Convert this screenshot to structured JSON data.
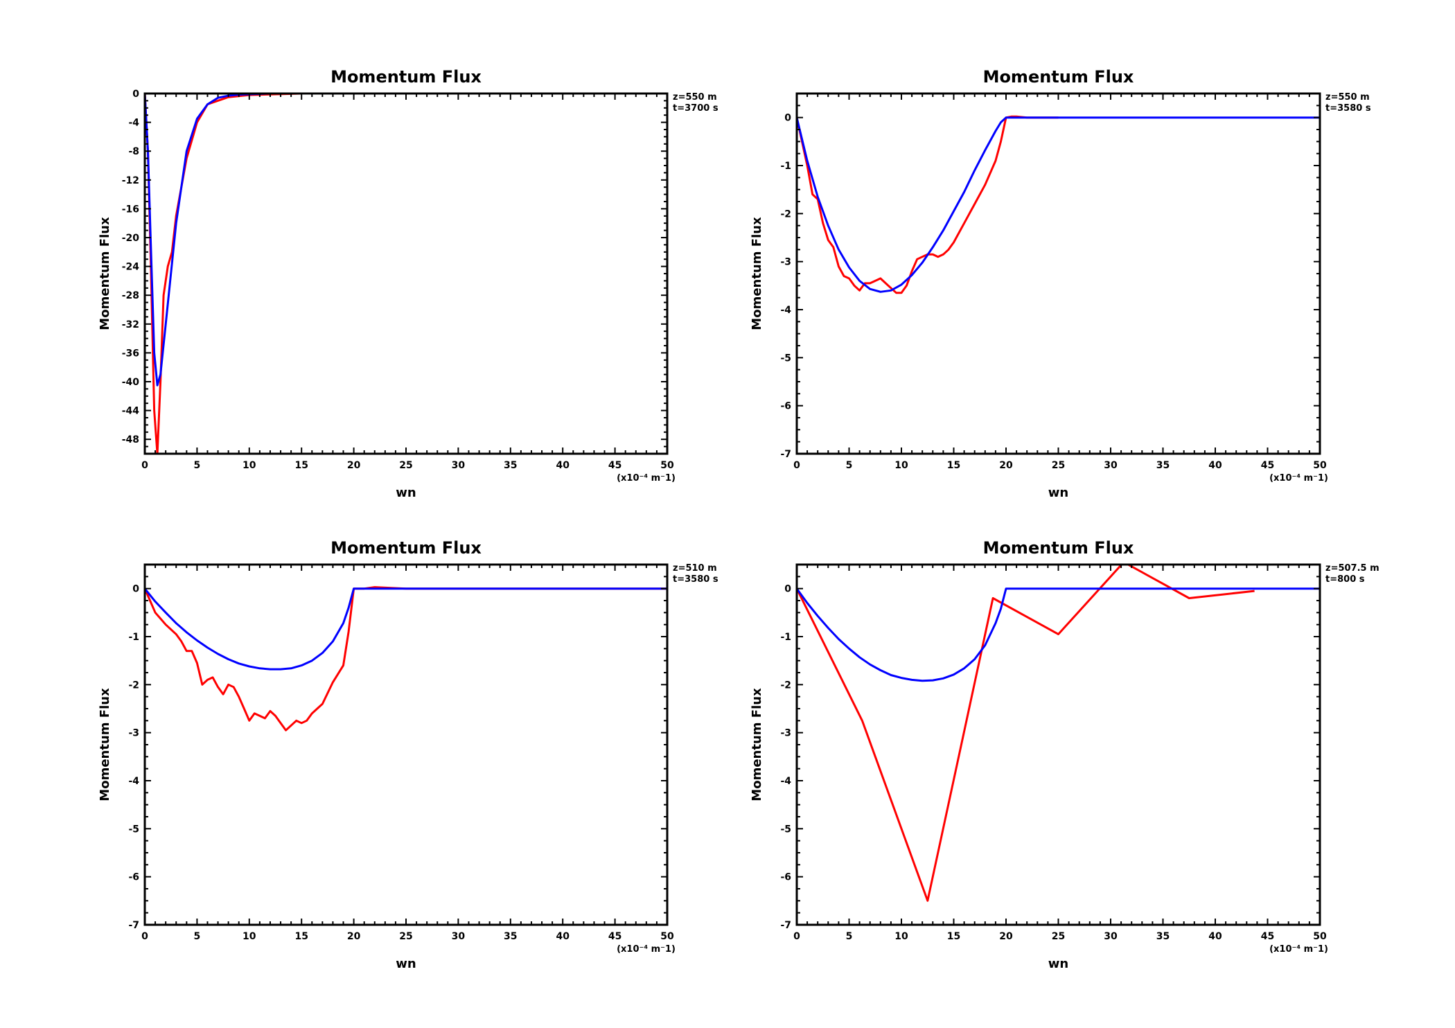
{
  "colors": {
    "observed": "#ff0000",
    "model": "#0000ff",
    "axes": "#000000"
  },
  "chart_data": [
    {
      "type": "line",
      "title": "Momentum Flux",
      "xlabel": "wn",
      "ylabel": "Momentum Flux",
      "x_unit_label": "(x10⁻⁴ m⁻1)",
      "annotations": [
        "z=550  m",
        "t=3700  s"
      ],
      "xlim": [
        0,
        50
      ],
      "ylim": [
        -50,
        0
      ],
      "x_ticks": [
        0,
        5,
        10,
        15,
        20,
        25,
        30,
        35,
        40,
        45,
        50
      ],
      "x_tick_labels": [
        "0",
        "5",
        "10",
        "15",
        "20",
        "25",
        "30",
        "35",
        "40",
        "45",
        "50"
      ],
      "y_ticks": [
        0,
        -4,
        -8,
        -12,
        -16,
        -20,
        -24,
        -28,
        -32,
        -36,
        -40,
        -44,
        -48
      ],
      "y_tick_labels": [
        "0",
        "-4",
        "-8",
        "-12",
        "-16",
        "-20",
        "-24",
        "-28",
        "-32",
        "-36",
        "-40",
        "-44",
        "-48"
      ],
      "grid": false,
      "series": [
        {
          "color": "#ff0000",
          "x": [
            0,
            0.3,
            0.6,
            0.9,
            1.2,
            1.5,
            1.8,
            2.2,
            2.6,
            3.0,
            4.0,
            5.0,
            6.0,
            8.0,
            10,
            15,
            20,
            30,
            40,
            50
          ],
          "y": [
            0,
            -8,
            -25,
            -44,
            -50,
            -40,
            -28,
            -24,
            -22,
            -17,
            -9,
            -4,
            -1.5,
            -0.5,
            -0.2,
            0,
            0,
            0,
            0,
            0
          ]
        },
        {
          "color": "#0000ff",
          "x": [
            0,
            0.3,
            0.6,
            0.9,
            1.2,
            1.5,
            2,
            3,
            4,
            5,
            6,
            7,
            8,
            9,
            10,
            12,
            15,
            20,
            30,
            40,
            50
          ],
          "y": [
            0,
            -8,
            -22,
            -36,
            -40.5,
            -39,
            -32,
            -18,
            -8,
            -3.5,
            -1.5,
            -0.6,
            -0.3,
            -0.15,
            -0.1,
            0,
            0,
            0,
            0,
            0,
            0
          ]
        }
      ]
    },
    {
      "type": "line",
      "title": "Momentum Flux",
      "xlabel": "wn",
      "ylabel": "Momentum Flux",
      "x_unit_label": "(x10⁻⁴ m⁻1)",
      "annotations": [
        "z=550  m",
        "t=3580  s"
      ],
      "xlim": [
        0,
        50
      ],
      "ylim": [
        -7,
        0.5
      ],
      "x_ticks": [
        0,
        5,
        10,
        15,
        20,
        25,
        30,
        35,
        40,
        45,
        50
      ],
      "x_tick_labels": [
        "0",
        "5",
        "10",
        "15",
        "20",
        "25",
        "30",
        "35",
        "40",
        "45",
        "50"
      ],
      "y_ticks": [
        0,
        -1,
        -2,
        -3,
        -4,
        -5,
        -6,
        -7
      ],
      "y_tick_labels": [
        "0",
        "-1",
        "-2",
        "-3",
        "-4",
        "-5",
        "-6",
        "-7"
      ],
      "grid": false,
      "series": [
        {
          "color": "#ff0000",
          "x": [
            0,
            0.5,
            1,
            1.5,
            2,
            2.5,
            3,
            3.5,
            4,
            4.5,
            5,
            5.5,
            6,
            6.5,
            7,
            7.5,
            8,
            8.5,
            9,
            9.5,
            10,
            10.5,
            11,
            11.5,
            12,
            12.5,
            13,
            13.5,
            14,
            14.5,
            15,
            16,
            17,
            18,
            19,
            19.5,
            20,
            20.5,
            21,
            22,
            25
          ],
          "y": [
            0,
            -0.5,
            -1.0,
            -1.6,
            -1.7,
            -2.2,
            -2.55,
            -2.7,
            -3.1,
            -3.3,
            -3.35,
            -3.5,
            -3.6,
            -3.45,
            -3.45,
            -3.4,
            -3.35,
            -3.45,
            -3.55,
            -3.65,
            -3.65,
            -3.5,
            -3.2,
            -2.95,
            -2.9,
            -2.85,
            -2.85,
            -2.9,
            -2.85,
            -2.75,
            -2.6,
            -2.2,
            -1.8,
            -1.4,
            -0.9,
            -0.5,
            0,
            0.02,
            0.02,
            0,
            0
          ]
        },
        {
          "color": "#0000ff",
          "x": [
            0,
            1,
            2,
            3,
            4,
            5,
            6,
            7,
            8,
            9,
            10,
            11,
            12,
            13,
            14,
            15,
            16,
            17,
            18,
            19,
            19.5,
            20,
            25,
            30,
            40,
            50
          ],
          "y": [
            0,
            -0.9,
            -1.65,
            -2.25,
            -2.75,
            -3.12,
            -3.4,
            -3.57,
            -3.63,
            -3.6,
            -3.48,
            -3.28,
            -3.02,
            -2.7,
            -2.35,
            -1.95,
            -1.55,
            -1.1,
            -0.68,
            -0.28,
            -0.1,
            0,
            0,
            0,
            0,
            0
          ]
        }
      ]
    },
    {
      "type": "line",
      "title": "Momentum Flux",
      "xlabel": "wn",
      "ylabel": "Momentum Flux",
      "x_unit_label": "(x10⁻⁴ m⁻1)",
      "annotations": [
        "z=510  m",
        "t=3580  s"
      ],
      "xlim": [
        0,
        50
      ],
      "ylim": [
        -7,
        0.5
      ],
      "x_ticks": [
        0,
        5,
        10,
        15,
        20,
        25,
        30,
        35,
        40,
        45,
        50
      ],
      "x_tick_labels": [
        "0",
        "5",
        "10",
        "15",
        "20",
        "25",
        "30",
        "35",
        "40",
        "45",
        "50"
      ],
      "y_ticks": [
        0,
        -1,
        -2,
        -3,
        -4,
        -5,
        -6,
        -7
      ],
      "y_tick_labels": [
        "0",
        "-1",
        "-2",
        "-3",
        "-4",
        "-5",
        "-6",
        "-7"
      ],
      "grid": false,
      "series": [
        {
          "color": "#ff0000",
          "x": [
            0,
            1,
            2,
            3,
            3.5,
            4,
            4.5,
            5,
            5.5,
            6,
            6.5,
            7,
            7.5,
            8,
            8.5,
            9,
            9.5,
            10,
            10.5,
            11,
            11.5,
            12,
            12.5,
            13,
            13.5,
            14,
            14.5,
            15,
            15.5,
            16,
            17,
            18,
            19,
            19.5,
            20,
            21,
            22,
            25,
            30,
            35,
            40,
            45,
            50
          ],
          "y": [
            0,
            -0.5,
            -0.75,
            -0.95,
            -1.1,
            -1.3,
            -1.3,
            -1.55,
            -2.0,
            -1.9,
            -1.85,
            -2.05,
            -2.2,
            -2.0,
            -2.05,
            -2.25,
            -2.5,
            -2.75,
            -2.6,
            -2.65,
            -2.7,
            -2.55,
            -2.65,
            -2.8,
            -2.95,
            -2.85,
            -2.75,
            -2.8,
            -2.75,
            -2.6,
            -2.4,
            -1.95,
            -1.6,
            -0.9,
            0,
            0,
            0.03,
            0,
            0,
            0,
            0,
            0,
            0
          ]
        },
        {
          "color": "#0000ff",
          "x": [
            0,
            1,
            2,
            3,
            4,
            5,
            6,
            7,
            8,
            9,
            10,
            11,
            12,
            13,
            14,
            15,
            16,
            17,
            18,
            19,
            19.5,
            20,
            25,
            30,
            40,
            50
          ],
          "y": [
            0,
            -0.27,
            -0.5,
            -0.72,
            -0.91,
            -1.08,
            -1.23,
            -1.36,
            -1.47,
            -1.56,
            -1.62,
            -1.66,
            -1.68,
            -1.68,
            -1.66,
            -1.6,
            -1.5,
            -1.34,
            -1.1,
            -0.72,
            -0.4,
            0,
            0,
            0,
            0,
            0
          ]
        }
      ]
    },
    {
      "type": "line",
      "title": "Momentum Flux",
      "xlabel": "wn",
      "ylabel": "Momentum Flux",
      "x_unit_label": "(x10⁻⁴ m⁻1)",
      "annotations": [
        "z=507.5  m",
        "t=800  s"
      ],
      "xlim": [
        0,
        50
      ],
      "ylim": [
        -7,
        0.5
      ],
      "x_ticks": [
        0,
        5,
        10,
        15,
        20,
        25,
        30,
        35,
        40,
        45,
        50
      ],
      "x_tick_labels": [
        "0",
        "5",
        "10",
        "15",
        "20",
        "25",
        "30",
        "35",
        "40",
        "45",
        "50"
      ],
      "y_ticks": [
        0,
        -1,
        -2,
        -3,
        -4,
        -5,
        -6,
        -7
      ],
      "y_tick_labels": [
        "0",
        "-1",
        "-2",
        "-3",
        "-4",
        "-5",
        "-6",
        "-7"
      ],
      "grid": false,
      "series": [
        {
          "color": "#ff0000",
          "x": [
            0,
            6.25,
            12.5,
            18.75,
            25,
            31.25,
            37.5,
            43.75
          ],
          "y": [
            0,
            -2.75,
            -6.5,
            -0.2,
            -0.95,
            0.55,
            -0.2,
            -0.05
          ]
        },
        {
          "color": "#0000ff",
          "x": [
            0,
            1,
            2,
            3,
            4,
            5,
            6,
            7,
            8,
            9,
            10,
            11,
            12,
            13,
            14,
            15,
            16,
            17,
            18,
            19,
            19.5,
            20,
            25,
            30,
            40,
            50
          ],
          "y": [
            0,
            -0.3,
            -0.57,
            -0.82,
            -1.05,
            -1.25,
            -1.43,
            -1.58,
            -1.7,
            -1.8,
            -1.86,
            -1.9,
            -1.92,
            -1.91,
            -1.87,
            -1.79,
            -1.66,
            -1.47,
            -1.18,
            -0.72,
            -0.42,
            0,
            0,
            0,
            0,
            0
          ]
        }
      ]
    }
  ]
}
